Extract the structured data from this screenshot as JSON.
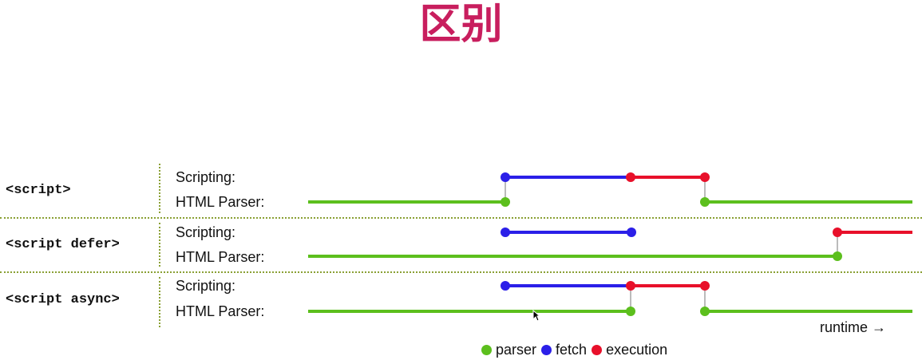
{
  "title": "区别",
  "watermark": "",
  "colors": {
    "parser": "#5cbf1d",
    "fetch": "#2b1fe8",
    "execution": "#e8102a",
    "connector": "#bbbbbb",
    "title": "#c81e5e"
  },
  "rows": [
    {
      "label": "<script>",
      "scripting_label": "Scripting:",
      "parser_label": "HTML Parser:"
    },
    {
      "label": "<script defer>",
      "scripting_label": "Scripting:",
      "parser_label": "HTML Parser:"
    },
    {
      "label": "<script async>",
      "scripting_label": "Scripting:",
      "parser_label": "HTML Parser:"
    }
  ],
  "runtime_label": "runtime →",
  "legend": [
    {
      "key": "parser",
      "label": "parser"
    },
    {
      "key": "fetch",
      "label": "fetch"
    },
    {
      "key": "execution",
      "label": "execution"
    }
  ]
}
